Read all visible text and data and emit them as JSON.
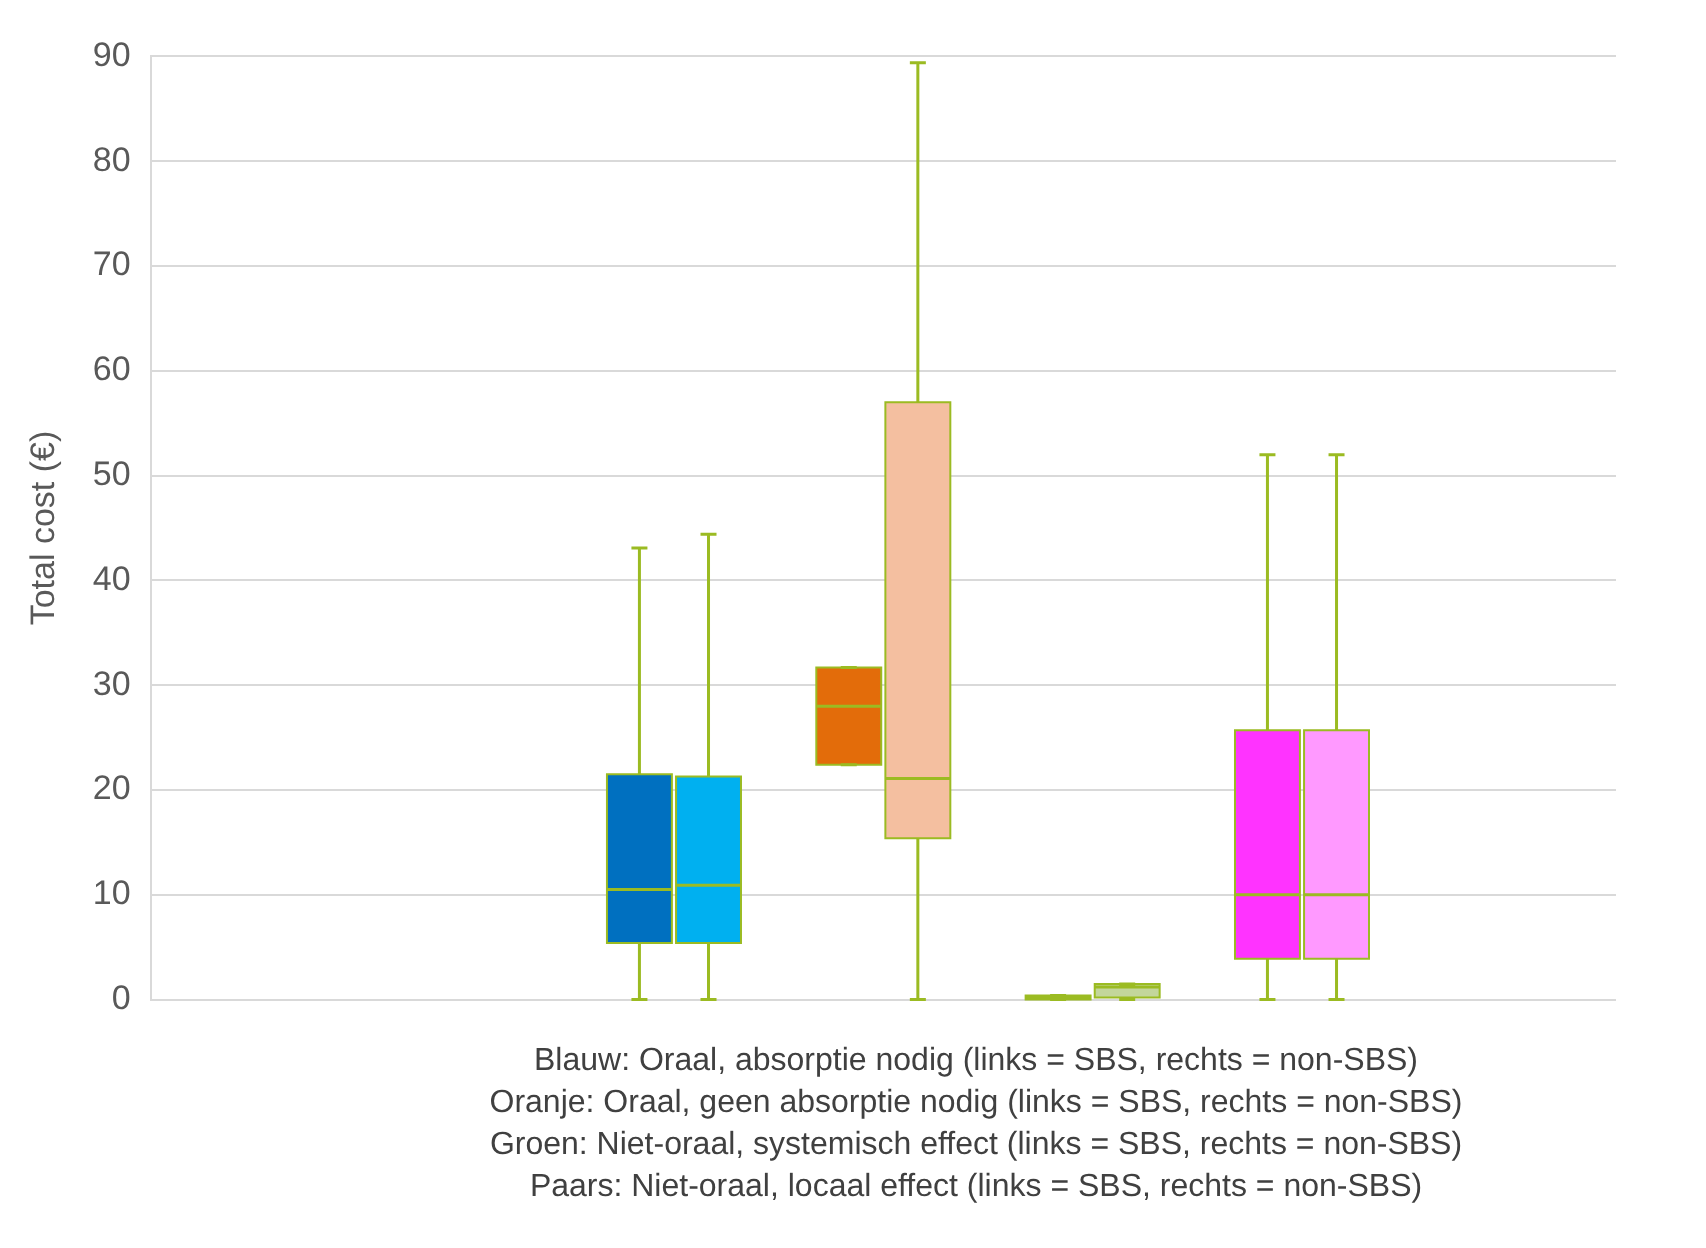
{
  "chart_data": {
    "type": "box",
    "ylabel": "Total cost (€)",
    "categories": [
      null,
      null,
      null,
      null,
      null,
      null,
      null
    ],
    "series": [
      {
        "colors": [
          "#0070c0",
          "#0070c0",
          "#0070c0",
          "#e36c0a",
          "#4f6228",
          "#ff33ff",
          "#ff33ff"
        ],
        "boxes": [
          null,
          null,
          {
            "low": 0,
            "q1": 5.4,
            "median": 10.5,
            "q3": 21.5,
            "high": 43.1
          },
          {
            "low": 22.4,
            "q1": 22.4,
            "median": 28,
            "q3": 31.7,
            "high": 31.7
          },
          {
            "low": 0,
            "q1": 0,
            "median": 0.2,
            "q3": 0.4,
            "high": 0.4
          },
          {
            "low": 0,
            "q1": 3.9,
            "median": 10,
            "q3": 25.7,
            "high": 52
          },
          null
        ]
      },
      {
        "colors": [
          "#00b0f0",
          "#00b0f0",
          "#00b0f0",
          "#f4bfa0",
          "#c3d69b",
          "#ff99ff",
          "#ff99ff"
        ],
        "boxes": [
          null,
          null,
          {
            "low": 0,
            "q1": 5.4,
            "median": 10.9,
            "q3": 21.3,
            "high": 44.4
          },
          {
            "low": 0,
            "q1": 15.4,
            "median": 21.1,
            "q3": 57,
            "high": 89.4
          },
          {
            "low": 0,
            "q1": 0.2,
            "median": 1.2,
            "q3": 1.5,
            "high": 1.5
          },
          {
            "low": 0,
            "q1": 3.9,
            "median": 10,
            "q3": 25.7,
            "high": 52
          },
          null
        ]
      }
    ],
    "ylim": [
      0,
      90
    ],
    "yticks": [
      0,
      10,
      20,
      30,
      40,
      50,
      60,
      70,
      80,
      90
    ],
    "grid": "y",
    "tick_labels": "y",
    "legend": false,
    "annotations": [
      "Blauw: Oraal, absorptie nodig (links = SBS, rechts = non-SBS)",
      "Oranje: Oraal, geen absorptie nodig (links = SBS, rechts = non-SBS)",
      "Groen: Niet-oraal, systemisch effect (links = SBS, rechts = non-SBS)",
      "Paars: Niet-oraal, locaal effect (links = SBS, rechts = non-SBS)"
    ]
  }
}
